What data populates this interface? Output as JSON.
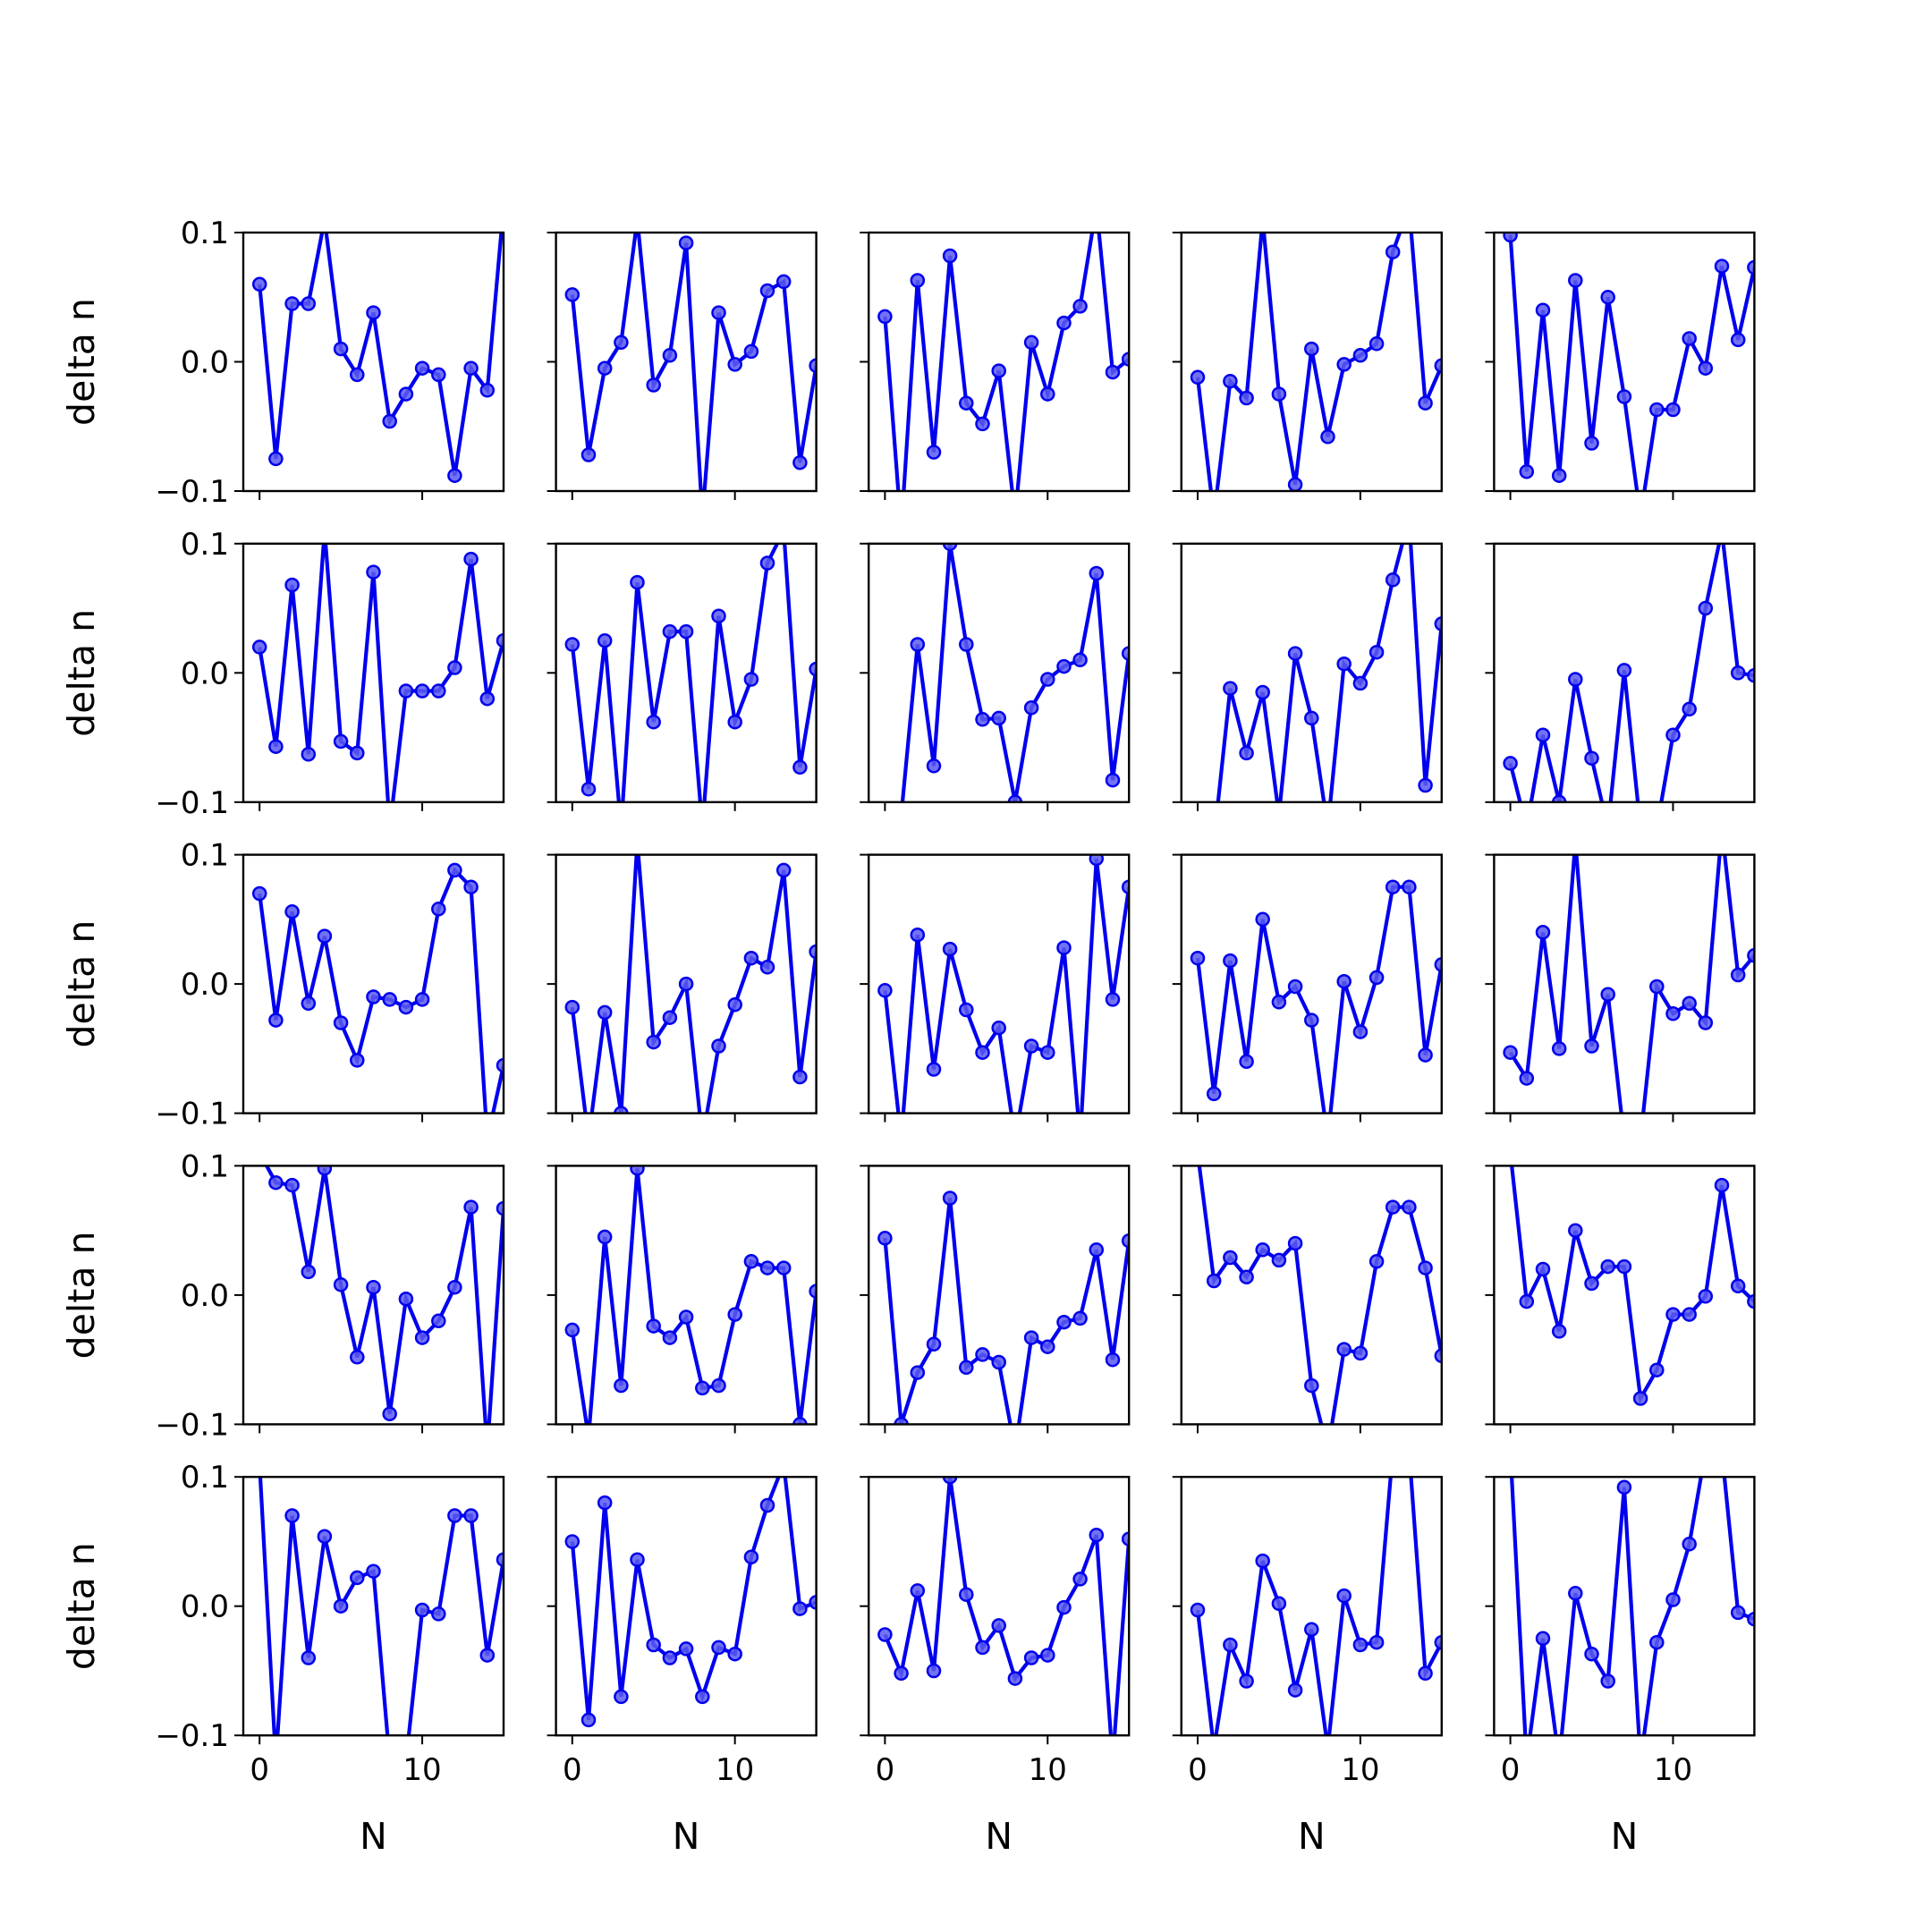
{
  "figure": {
    "layout": "5x5 grid of small line plots",
    "line_color": "#0000ee",
    "marker_color": "#5a5af0",
    "background": "#ffffff"
  },
  "chart_data": {
    "type": "line",
    "rows": 5,
    "cols": 5,
    "xlabel": "N",
    "ylabel": "delta n",
    "xlim": [
      -1,
      15
    ],
    "ylim": [
      -0.1,
      0.1
    ],
    "xticks": [
      0,
      10
    ],
    "yticks": [
      -0.1,
      0.0,
      0.1
    ],
    "xtick_labels": [
      "0",
      "10"
    ],
    "ytick_labels": [
      "−0.1",
      "0.0",
      "0.1"
    ],
    "x": [
      0,
      1,
      2,
      3,
      4,
      5,
      6,
      7,
      8,
      9,
      10,
      11,
      12,
      13,
      14,
      15
    ],
    "panels": [
      [
        0.06,
        -0.075,
        0.045,
        0.045,
        0.11,
        0.01,
        -0.01,
        0.038,
        -0.046,
        -0.025,
        -0.005,
        -0.01,
        -0.088,
        -0.005,
        -0.022,
        0.12
      ],
      [
        0.052,
        -0.072,
        -0.005,
        0.015,
        0.11,
        -0.018,
        0.005,
        0.092,
        -0.12,
        0.038,
        -0.002,
        0.008,
        0.055,
        0.062,
        -0.078,
        -0.003
      ],
      [
        0.035,
        -0.13,
        0.063,
        -0.07,
        0.082,
        -0.032,
        -0.048,
        -0.007,
        -0.12,
        0.015,
        -0.025,
        0.03,
        0.043,
        0.12,
        -0.008,
        0.002
      ],
      [
        -0.012,
        -0.12,
        -0.015,
        -0.028,
        0.11,
        -0.025,
        -0.095,
        0.01,
        -0.058,
        -0.002,
        0.005,
        0.014,
        0.085,
        0.12,
        -0.032,
        -0.003
      ],
      [
        0.098,
        -0.085,
        0.04,
        -0.088,
        0.063,
        -0.063,
        0.05,
        -0.027,
        -0.12,
        -0.037,
        -0.037,
        0.018,
        -0.005,
        0.074,
        0.017,
        0.073
      ],
      [
        0.02,
        -0.057,
        0.068,
        -0.063,
        0.11,
        -0.053,
        -0.062,
        0.078,
        -0.12,
        -0.014,
        -0.014,
        -0.014,
        0.004,
        0.088,
        -0.02,
        0.025
      ],
      [
        0.022,
        -0.09,
        0.025,
        -0.12,
        0.07,
        -0.038,
        0.032,
        0.032,
        -0.12,
        0.044,
        -0.038,
        -0.005,
        0.085,
        0.11,
        -0.073,
        0.003
      ],
      [
        -0.12,
        -0.11,
        0.022,
        -0.072,
        0.1,
        0.022,
        -0.036,
        -0.035,
        -0.1,
        -0.027,
        -0.005,
        0.005,
        0.01,
        0.077,
        -0.083,
        0.015
      ],
      [
        -0.12,
        -0.13,
        -0.012,
        -0.062,
        -0.015,
        -0.11,
        0.015,
        -0.035,
        -0.12,
        0.007,
        -0.008,
        0.016,
        0.072,
        0.12,
        -0.087,
        0.038
      ],
      [
        -0.07,
        -0.12,
        -0.048,
        -0.1,
        -0.005,
        -0.066,
        -0.12,
        0.002,
        -0.12,
        -0.12,
        -0.048,
        -0.028,
        0.05,
        0.11,
        0.0,
        -0.002
      ],
      [
        0.07,
        -0.028,
        0.056,
        -0.015,
        0.037,
        -0.03,
        -0.059,
        -0.01,
        -0.012,
        -0.018,
        -0.012,
        0.058,
        0.088,
        0.075,
        -0.12,
        -0.063
      ],
      [
        -0.018,
        -0.12,
        -0.022,
        -0.1,
        0.11,
        -0.045,
        -0.026,
        0.0,
        -0.12,
        -0.048,
        -0.016,
        0.02,
        0.013,
        0.088,
        -0.072,
        0.025
      ],
      [
        -0.005,
        -0.12,
        0.038,
        -0.066,
        0.027,
        -0.02,
        -0.053,
        -0.034,
        -0.12,
        -0.048,
        -0.053,
        0.028,
        -0.12,
        0.097,
        -0.012,
        0.075
      ],
      [
        0.02,
        -0.085,
        0.018,
        -0.06,
        0.05,
        -0.014,
        -0.002,
        -0.028,
        -0.12,
        0.002,
        -0.037,
        0.005,
        0.075,
        0.075,
        -0.055,
        0.015
      ],
      [
        -0.053,
        -0.073,
        0.04,
        -0.05,
        0.11,
        -0.048,
        -0.008,
        -0.12,
        -0.12,
        -0.002,
        -0.023,
        -0.015,
        -0.03,
        0.12,
        0.007,
        0.022
      ],
      [
        0.11,
        0.087,
        0.085,
        0.018,
        0.098,
        0.008,
        -0.048,
        0.006,
        -0.092,
        -0.003,
        -0.033,
        -0.02,
        0.006,
        0.068,
        -0.12,
        0.067
      ],
      [
        -0.027,
        -0.11,
        0.045,
        -0.07,
        0.098,
        -0.024,
        -0.033,
        -0.017,
        -0.072,
        -0.07,
        -0.015,
        0.026,
        0.021,
        0.021,
        -0.1,
        0.003
      ],
      [
        0.044,
        -0.1,
        -0.06,
        -0.038,
        0.075,
        -0.056,
        -0.046,
        -0.052,
        -0.12,
        -0.033,
        -0.04,
        -0.021,
        -0.018,
        0.035,
        -0.05,
        0.042
      ],
      [
        0.11,
        0.011,
        0.029,
        0.014,
        0.035,
        0.027,
        0.04,
        -0.07,
        -0.12,
        -0.042,
        -0.045,
        0.026,
        0.068,
        0.068,
        0.021,
        -0.047
      ],
      [
        0.11,
        -0.005,
        0.02,
        -0.028,
        0.05,
        0.009,
        0.022,
        0.022,
        -0.08,
        -0.058,
        -0.015,
        -0.015,
        -0.001,
        0.085,
        0.007,
        -0.005
      ],
      [
        0.11,
        -0.12,
        0.07,
        -0.04,
        0.054,
        0.0,
        0.022,
        0.027,
        -0.12,
        -0.12,
        -0.003,
        -0.006,
        0.07,
        0.07,
        -0.038,
        0.036
      ],
      [
        0.05,
        -0.088,
        0.08,
        -0.07,
        0.036,
        -0.03,
        -0.04,
        -0.033,
        -0.07,
        -0.032,
        -0.037,
        0.038,
        0.078,
        0.11,
        -0.002,
        0.003
      ],
      [
        -0.022,
        -0.052,
        0.012,
        -0.05,
        0.1,
        0.009,
        -0.032,
        -0.015,
        -0.056,
        -0.04,
        -0.038,
        -0.001,
        0.021,
        0.055,
        -0.12,
        0.052
      ],
      [
        -0.003,
        -0.11,
        -0.03,
        -0.058,
        0.035,
        0.002,
        -0.065,
        -0.018,
        -0.11,
        0.008,
        -0.03,
        -0.028,
        0.12,
        0.12,
        -0.052,
        -0.028
      ],
      [
        0.12,
        -0.12,
        -0.025,
        -0.12,
        0.01,
        -0.037,
        -0.058,
        0.092,
        -0.12,
        -0.028,
        0.005,
        0.048,
        0.12,
        0.12,
        -0.005,
        -0.01
      ]
    ]
  }
}
